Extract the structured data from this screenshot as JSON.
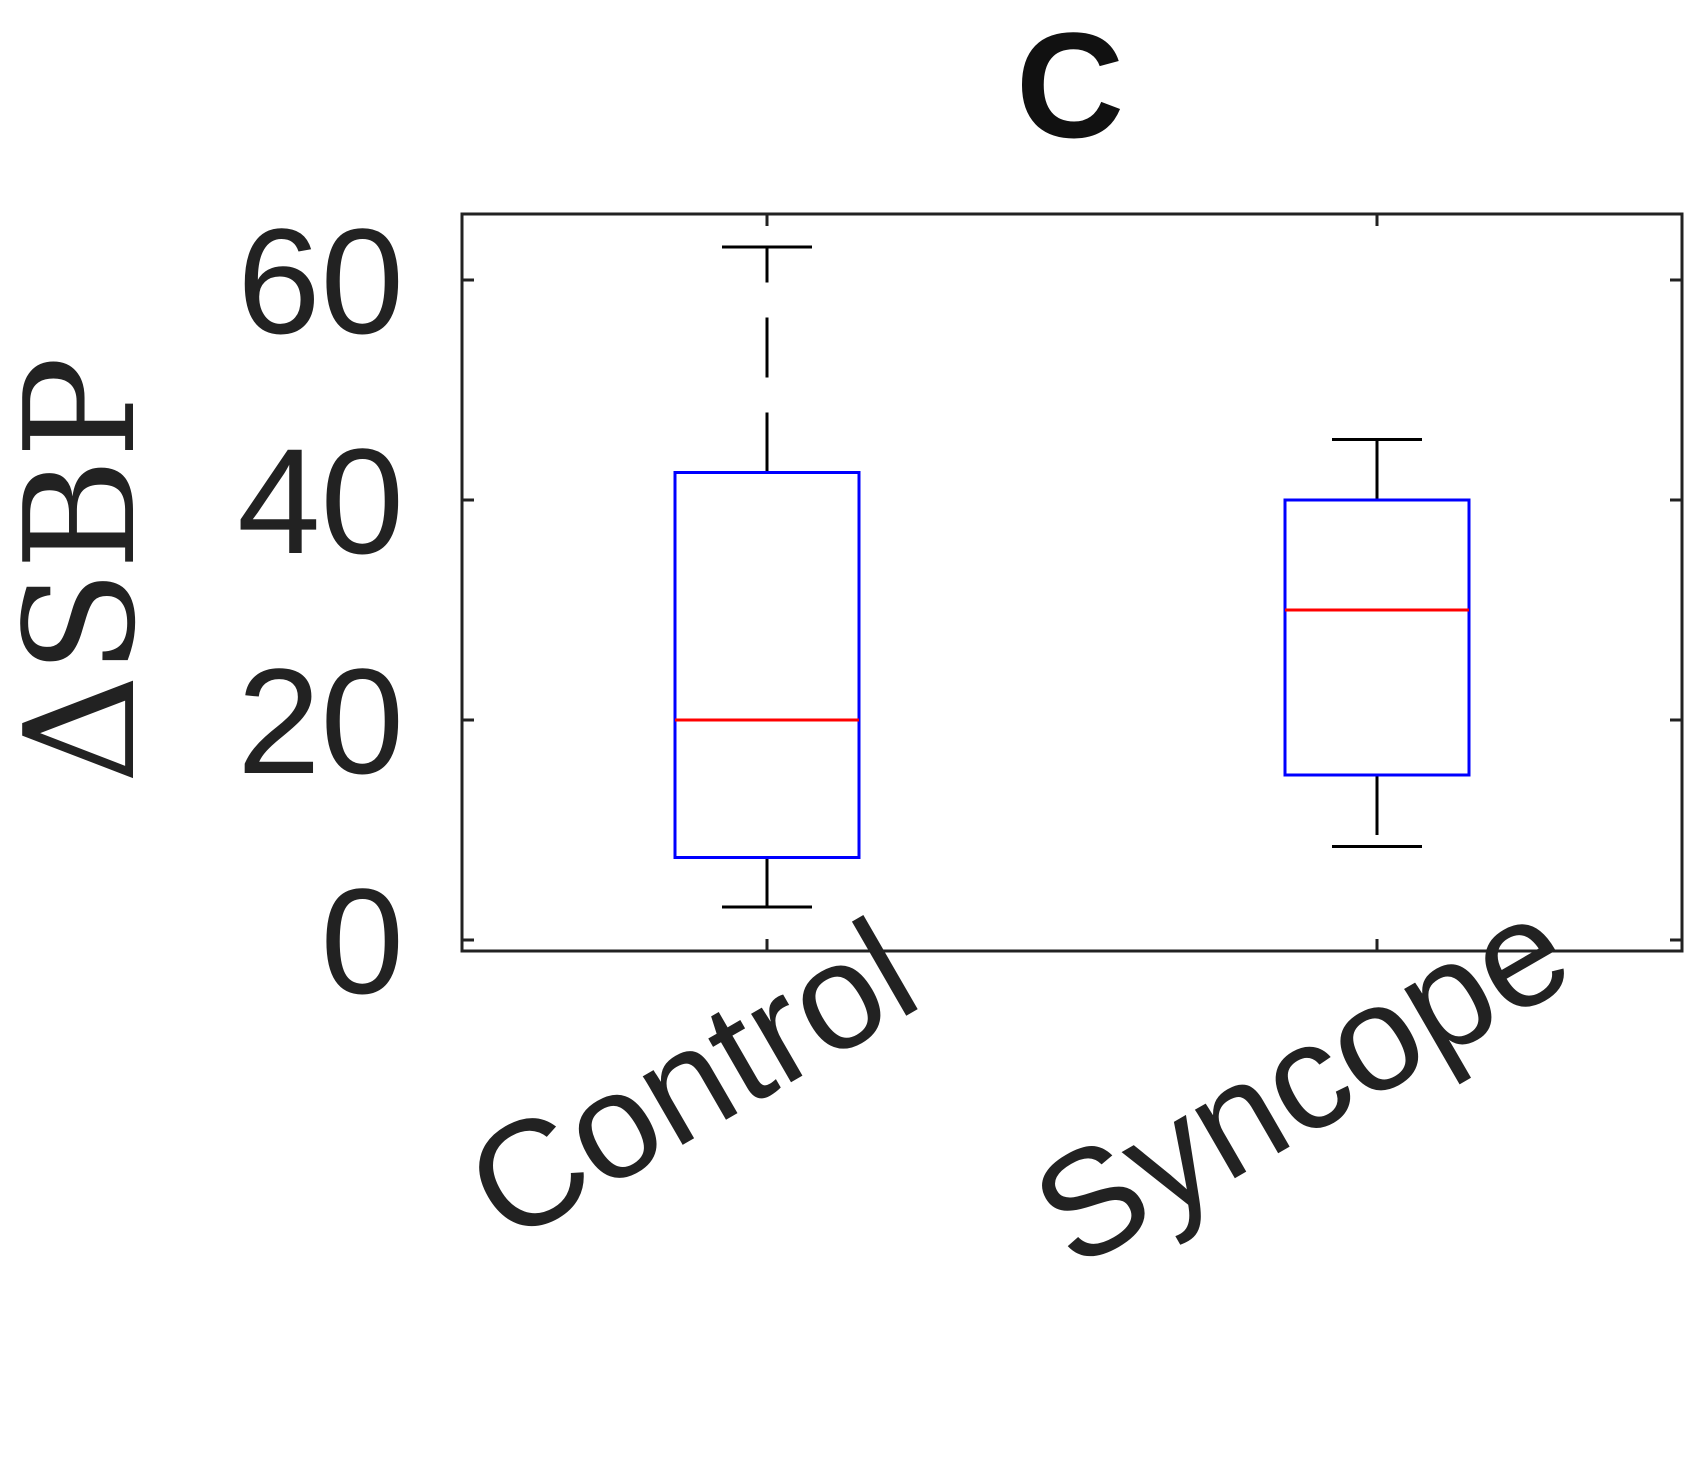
{
  "chart_data": {
    "type": "box",
    "title": "C",
    "xlabel": "",
    "ylabel": "ΔSBP",
    "ylim": [
      -1,
      66
    ],
    "yticks": [
      0,
      20,
      40,
      60
    ],
    "categories": [
      "Control",
      "Syncope"
    ],
    "boxes": [
      {
        "category": "Control",
        "whisker_low": 3,
        "q1": 7.5,
        "median": 20,
        "q3": 42.5,
        "whisker_high": 63
      },
      {
        "category": "Syncope",
        "whisker_low": 8.5,
        "q1": 15,
        "median": 30,
        "q3": 40,
        "whisker_high": 45.5
      }
    ],
    "grid": false,
    "colors": {
      "box": "#0000ff",
      "median": "#ff0000",
      "whisker": "#000000",
      "axes": "#222222"
    }
  }
}
